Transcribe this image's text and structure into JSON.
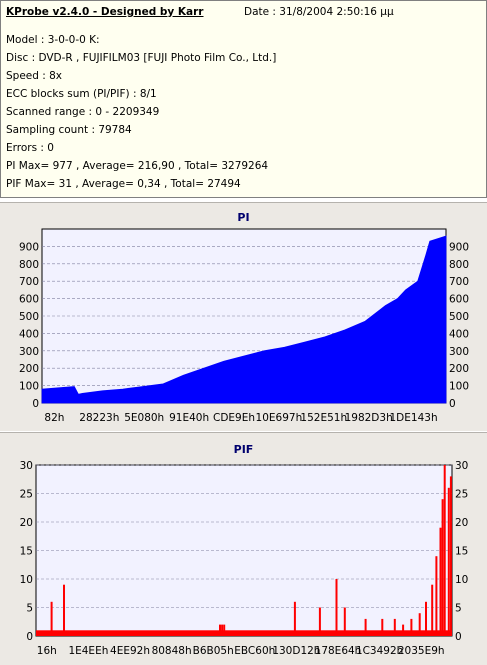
{
  "info": {
    "title": "KProbe v2.4.0 - Designed by Karr",
    "date": "Date : 31/8/2004 2:50:16 μμ",
    "lines": [
      "Model : 3-0-0-0 K:",
      "Disc : DVD-R , FUJIFILM03 [FUJI Photo Film Co., Ltd.]",
      "Speed : 8x",
      "ECC blocks sum (PI/PIF) : 8/1",
      "Scanned range : 0 - 2209349",
      "Sampling count : 79784",
      "Errors : 0",
      "PI Max= 977 , Average= 216,90 , Total= 3279264",
      "PIF Max= 31 , Average= 0,34 , Total= 27494"
    ]
  },
  "chart_data": [
    {
      "type": "area",
      "title": "PI",
      "color": "#0000ff",
      "ylim": [
        0,
        1000
      ],
      "yticks": [
        0,
        100,
        200,
        300,
        400,
        500,
        600,
        700,
        800,
        900
      ],
      "xticks": [
        "82h",
        "28223h",
        "5E080h",
        "91E40h",
        "CDE9Eh",
        "10E697h",
        "152E51h",
        "1982D3h",
        "1DE143h"
      ],
      "grid": true,
      "x": [
        0,
        0.08,
        0.09,
        0.1,
        0.15,
        0.2,
        0.25,
        0.3,
        0.35,
        0.4,
        0.45,
        0.5,
        0.55,
        0.6,
        0.65,
        0.7,
        0.75,
        0.8,
        0.85,
        0.88,
        0.9,
        0.93,
        0.95,
        0.96,
        1.0
      ],
      "values": [
        80,
        95,
        50,
        55,
        70,
        80,
        95,
        110,
        160,
        200,
        240,
        270,
        300,
        320,
        350,
        380,
        420,
        470,
        560,
        600,
        650,
        700,
        850,
        930,
        960
      ]
    },
    {
      "type": "bar",
      "title": "PIF",
      "color": "#ff0000",
      "ylim": [
        0,
        30
      ],
      "yticks": [
        0,
        5,
        10,
        15,
        20,
        25,
        30
      ],
      "xticks": [
        "16h",
        "1E4EEh",
        "4EE92h",
        "80848h",
        "B6B05h",
        "EBC60h",
        "130D12h",
        "178E64h",
        "1C3492h",
        "2035E9h"
      ],
      "grid": true,
      "base_level": 1,
      "spikes": [
        {
          "x": 0.035,
          "value": 6
        },
        {
          "x": 0.065,
          "value": 9
        },
        {
          "x": 0.44,
          "value": 2
        },
        {
          "x": 0.445,
          "value": 2
        },
        {
          "x": 0.45,
          "value": 2
        },
        {
          "x": 0.62,
          "value": 6
        },
        {
          "x": 0.68,
          "value": 5
        },
        {
          "x": 0.72,
          "value": 10
        },
        {
          "x": 0.74,
          "value": 5
        },
        {
          "x": 0.79,
          "value": 3
        },
        {
          "x": 0.83,
          "value": 3
        },
        {
          "x": 0.86,
          "value": 3
        },
        {
          "x": 0.88,
          "value": 2
        },
        {
          "x": 0.9,
          "value": 3
        },
        {
          "x": 0.92,
          "value": 4
        },
        {
          "x": 0.935,
          "value": 6
        },
        {
          "x": 0.95,
          "value": 9
        },
        {
          "x": 0.96,
          "value": 14
        },
        {
          "x": 0.97,
          "value": 19
        },
        {
          "x": 0.975,
          "value": 24
        },
        {
          "x": 0.98,
          "value": 30
        },
        {
          "x": 0.99,
          "value": 26
        },
        {
          "x": 0.995,
          "value": 28
        }
      ]
    }
  ]
}
